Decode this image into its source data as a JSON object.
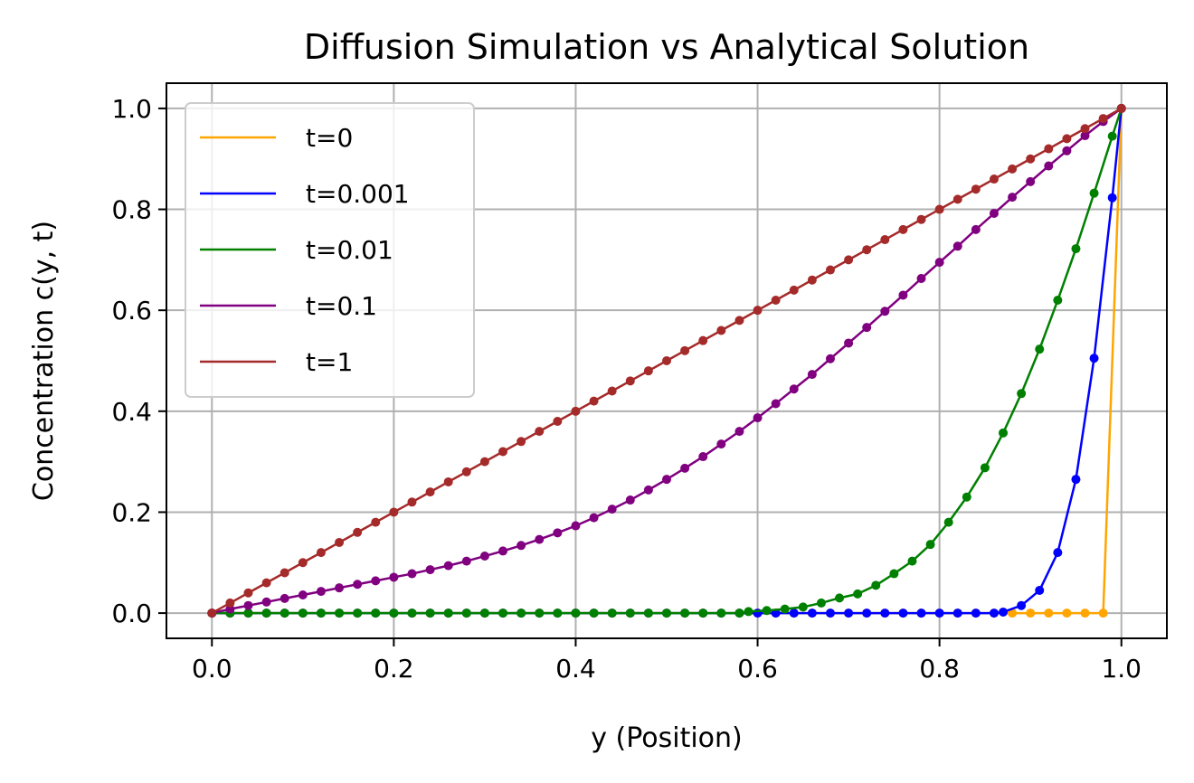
{
  "chart_data": {
    "type": "line",
    "title": "Diffusion Simulation vs Analytical Solution",
    "xlabel": "y (Position)",
    "ylabel": "Concentration c(y, t)",
    "xlim": [
      -0.05,
      1.05
    ],
    "ylim": [
      -0.05,
      1.05
    ],
    "xticks": [
      "0.0",
      "0.2",
      "0.4",
      "0.6",
      "0.8",
      "1.0"
    ],
    "yticks": [
      "0.0",
      "0.2",
      "0.4",
      "0.6",
      "0.8",
      "1.0"
    ],
    "grid": true,
    "legend_position": "top-left",
    "series": [
      {
        "name": "t=0",
        "color": "#ffa500",
        "x": [
          0.0,
          0.02,
          0.04,
          0.06,
          0.08,
          0.1,
          0.12,
          0.14,
          0.16,
          0.18,
          0.2,
          0.22,
          0.24,
          0.26,
          0.28,
          0.3,
          0.32,
          0.34,
          0.36,
          0.38,
          0.4,
          0.42,
          0.44,
          0.46,
          0.48,
          0.5,
          0.52,
          0.54,
          0.56,
          0.58,
          0.6,
          0.62,
          0.64,
          0.66,
          0.68,
          0.7,
          0.72,
          0.74,
          0.76,
          0.78,
          0.8,
          0.82,
          0.84,
          0.86,
          0.88,
          0.9,
          0.92,
          0.94,
          0.96,
          0.98,
          1.0
        ],
        "y": [
          0,
          0,
          0,
          0,
          0,
          0,
          0,
          0,
          0,
          0,
          0,
          0,
          0,
          0,
          0,
          0,
          0,
          0,
          0,
          0,
          0,
          0,
          0,
          0,
          0,
          0,
          0,
          0,
          0,
          0,
          0,
          0,
          0,
          0,
          0,
          0,
          0,
          0,
          0,
          0,
          0,
          0,
          0,
          0,
          0,
          0,
          0,
          0,
          0,
          0,
          1.0
        ]
      },
      {
        "name": "t=0.001",
        "color": "#0000ff",
        "x": [
          0.0,
          0.02,
          0.04,
          0.06,
          0.08,
          0.1,
          0.12,
          0.14,
          0.16,
          0.18,
          0.2,
          0.22,
          0.24,
          0.26,
          0.28,
          0.3,
          0.32,
          0.34,
          0.36,
          0.38,
          0.4,
          0.42,
          0.44,
          0.46,
          0.48,
          0.5,
          0.52,
          0.54,
          0.56,
          0.58,
          0.6,
          0.62,
          0.64,
          0.66,
          0.68,
          0.7,
          0.72,
          0.74,
          0.76,
          0.78,
          0.8,
          0.82,
          0.84,
          0.86,
          0.87,
          0.89,
          0.91,
          0.93,
          0.95,
          0.97,
          0.99,
          1.0
        ],
        "y": [
          0,
          0,
          0,
          0,
          0,
          0,
          0,
          0,
          0,
          0,
          0,
          0,
          0,
          0,
          0,
          0,
          0,
          0,
          0,
          0,
          0,
          0,
          0,
          0,
          0,
          0,
          0,
          0,
          0,
          0,
          0,
          0,
          0,
          0,
          0,
          0,
          0,
          0,
          0,
          0,
          0,
          0,
          0,
          0,
          0.002,
          0.015,
          0.045,
          0.12,
          0.265,
          0.505,
          0.823,
          1.0
        ]
      },
      {
        "name": "t=0.01",
        "color": "#008000",
        "x": [
          0.0,
          0.02,
          0.04,
          0.06,
          0.08,
          0.1,
          0.12,
          0.14,
          0.16,
          0.18,
          0.2,
          0.22,
          0.24,
          0.26,
          0.28,
          0.3,
          0.32,
          0.34,
          0.36,
          0.38,
          0.4,
          0.42,
          0.44,
          0.46,
          0.48,
          0.5,
          0.52,
          0.54,
          0.56,
          0.58,
          0.59,
          0.61,
          0.63,
          0.65,
          0.67,
          0.69,
          0.71,
          0.73,
          0.75,
          0.77,
          0.79,
          0.81,
          0.83,
          0.85,
          0.87,
          0.89,
          0.91,
          0.93,
          0.95,
          0.97,
          0.99,
          1.0
        ],
        "y": [
          0,
          0,
          0,
          0,
          0,
          0,
          0,
          0,
          0,
          0,
          0,
          0,
          0,
          0,
          0,
          0,
          0,
          0,
          0,
          0,
          0,
          0,
          0,
          0,
          0,
          0,
          0,
          0,
          0,
          0,
          0.003,
          0.005,
          0.008,
          0.012,
          0.02,
          0.03,
          0.038,
          0.055,
          0.078,
          0.103,
          0.136,
          0.18,
          0.23,
          0.288,
          0.357,
          0.435,
          0.523,
          0.62,
          0.722,
          0.832,
          0.945,
          1.0
        ]
      },
      {
        "name": "t=0.1",
        "color": "#800080",
        "x": [
          0.0,
          0.02,
          0.04,
          0.06,
          0.08,
          0.1,
          0.12,
          0.14,
          0.16,
          0.18,
          0.2,
          0.22,
          0.24,
          0.26,
          0.28,
          0.3,
          0.32,
          0.34,
          0.36,
          0.38,
          0.4,
          0.42,
          0.44,
          0.46,
          0.48,
          0.5,
          0.52,
          0.54,
          0.56,
          0.58,
          0.6,
          0.62,
          0.64,
          0.66,
          0.68,
          0.7,
          0.72,
          0.74,
          0.76,
          0.78,
          0.8,
          0.82,
          0.84,
          0.86,
          0.88,
          0.9,
          0.92,
          0.94,
          0.96,
          0.98,
          1.0
        ],
        "y": [
          0.0,
          0.008,
          0.015,
          0.022,
          0.029,
          0.036,
          0.043,
          0.05,
          0.057,
          0.064,
          0.071,
          0.078,
          0.086,
          0.094,
          0.103,
          0.113,
          0.123,
          0.134,
          0.146,
          0.159,
          0.173,
          0.189,
          0.206,
          0.224,
          0.244,
          0.265,
          0.287,
          0.31,
          0.335,
          0.36,
          0.387,
          0.415,
          0.444,
          0.473,
          0.504,
          0.535,
          0.566,
          0.598,
          0.63,
          0.663,
          0.695,
          0.727,
          0.76,
          0.792,
          0.824,
          0.855,
          0.886,
          0.916,
          0.946,
          0.974,
          1.0
        ]
      },
      {
        "name": "t=1",
        "color": "#a52a2a",
        "x": [
          0.0,
          0.02,
          0.04,
          0.06,
          0.08,
          0.1,
          0.12,
          0.14,
          0.16,
          0.18,
          0.2,
          0.22,
          0.24,
          0.26,
          0.28,
          0.3,
          0.32,
          0.34,
          0.36,
          0.38,
          0.4,
          0.42,
          0.44,
          0.46,
          0.48,
          0.5,
          0.52,
          0.54,
          0.56,
          0.58,
          0.6,
          0.62,
          0.64,
          0.66,
          0.68,
          0.7,
          0.72,
          0.74,
          0.76,
          0.78,
          0.8,
          0.82,
          0.84,
          0.86,
          0.88,
          0.9,
          0.92,
          0.94,
          0.96,
          0.98,
          1.0
        ],
        "y": [
          0.0,
          0.02,
          0.04,
          0.06,
          0.08,
          0.1,
          0.12,
          0.14,
          0.16,
          0.18,
          0.2,
          0.22,
          0.24,
          0.26,
          0.28,
          0.3,
          0.32,
          0.34,
          0.36,
          0.38,
          0.4,
          0.42,
          0.44,
          0.46,
          0.48,
          0.5,
          0.52,
          0.54,
          0.56,
          0.58,
          0.6,
          0.62,
          0.64,
          0.66,
          0.68,
          0.7,
          0.72,
          0.74,
          0.76,
          0.78,
          0.8,
          0.82,
          0.84,
          0.86,
          0.88,
          0.9,
          0.92,
          0.94,
          0.96,
          0.98,
          1.0
        ]
      }
    ]
  }
}
